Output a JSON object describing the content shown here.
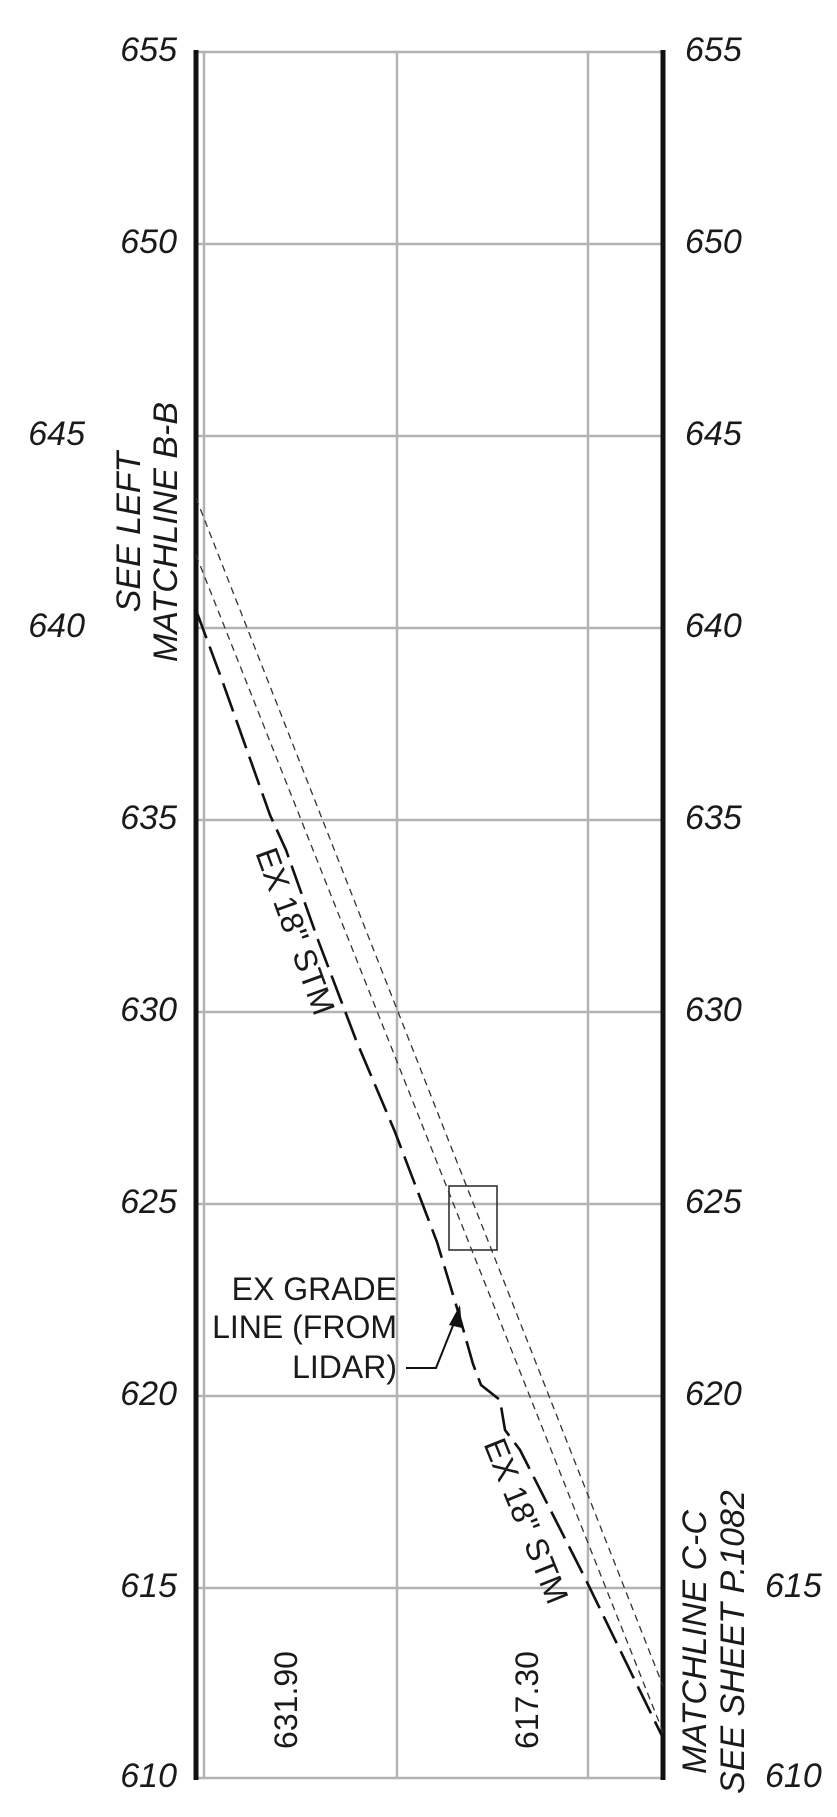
{
  "profile": {
    "elevations": [
      655,
      650,
      645,
      640,
      635,
      630,
      625,
      620,
      615,
      610
    ],
    "left_matchline": {
      "line1": "SEE LEFT",
      "line2": "MATCHLINE B-B"
    },
    "right_matchline": {
      "line1": "MATCHLINE C-C",
      "line2": "SEE SHEET P.1082"
    },
    "grade_callout": {
      "line1": "EX GRADE",
      "line2": "LINE (FROM",
      "line3": "LIDAR)"
    },
    "pipe_label_upper": "EX 18\" STM",
    "pipe_label_lower": "EX 18\" STM",
    "stations": [
      "631.90",
      "617.30"
    ],
    "colors": {
      "grid": "#b3b3b3",
      "border": "#111111",
      "ink": "#1a1a1a"
    }
  }
}
